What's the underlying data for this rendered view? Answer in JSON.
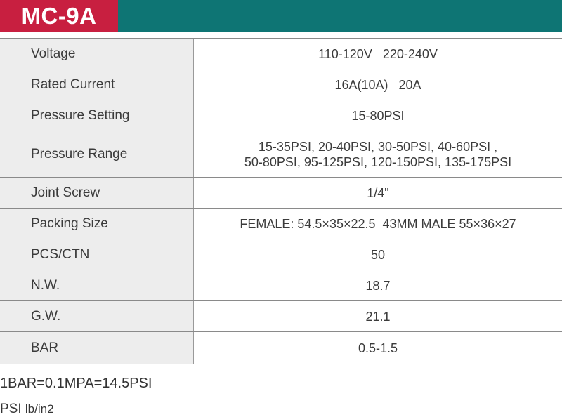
{
  "model": "MC-9A",
  "colors": {
    "header_teal": "#0e7574",
    "model_red": "#c81f40",
    "label_bg": "#ededed"
  },
  "specs": [
    {
      "label": "Voltage",
      "value": [
        "110-120V   220-240V"
      ]
    },
    {
      "label": "Rated Current",
      "value": [
        "16A(10A)   20A"
      ]
    },
    {
      "label": "Pressure Setting",
      "value": [
        "15-80PSI"
      ]
    },
    {
      "label": "Pressure Range",
      "value": [
        "15-35PSI, 20-40PSI, 30-50PSI, 40-60PSI ,",
        "50-80PSI, 95-125PSI, 120-150PSI, 135-175PSI"
      ]
    },
    {
      "label": "Joint Screw",
      "value": [
        "1/4\""
      ]
    },
    {
      "label": "Packing Size",
      "value": [
        "FEMALE: 54.5×35×22.5  43MM MALE 55×36×27"
      ]
    },
    {
      "label": "PCS/CTN",
      "value": [
        "50"
      ]
    },
    {
      "label": "N.W.",
      "value": [
        "18.7"
      ]
    },
    {
      "label": "G.W.",
      "value": [
        "21.1"
      ]
    },
    {
      "label": "BAR",
      "value": [
        "0.5-1.5"
      ]
    }
  ],
  "notes": {
    "conversion": "1BAR=0.1MPA=14.5PSI",
    "psi_prefix": "PSI",
    "psi_unit": "lb/in2"
  }
}
